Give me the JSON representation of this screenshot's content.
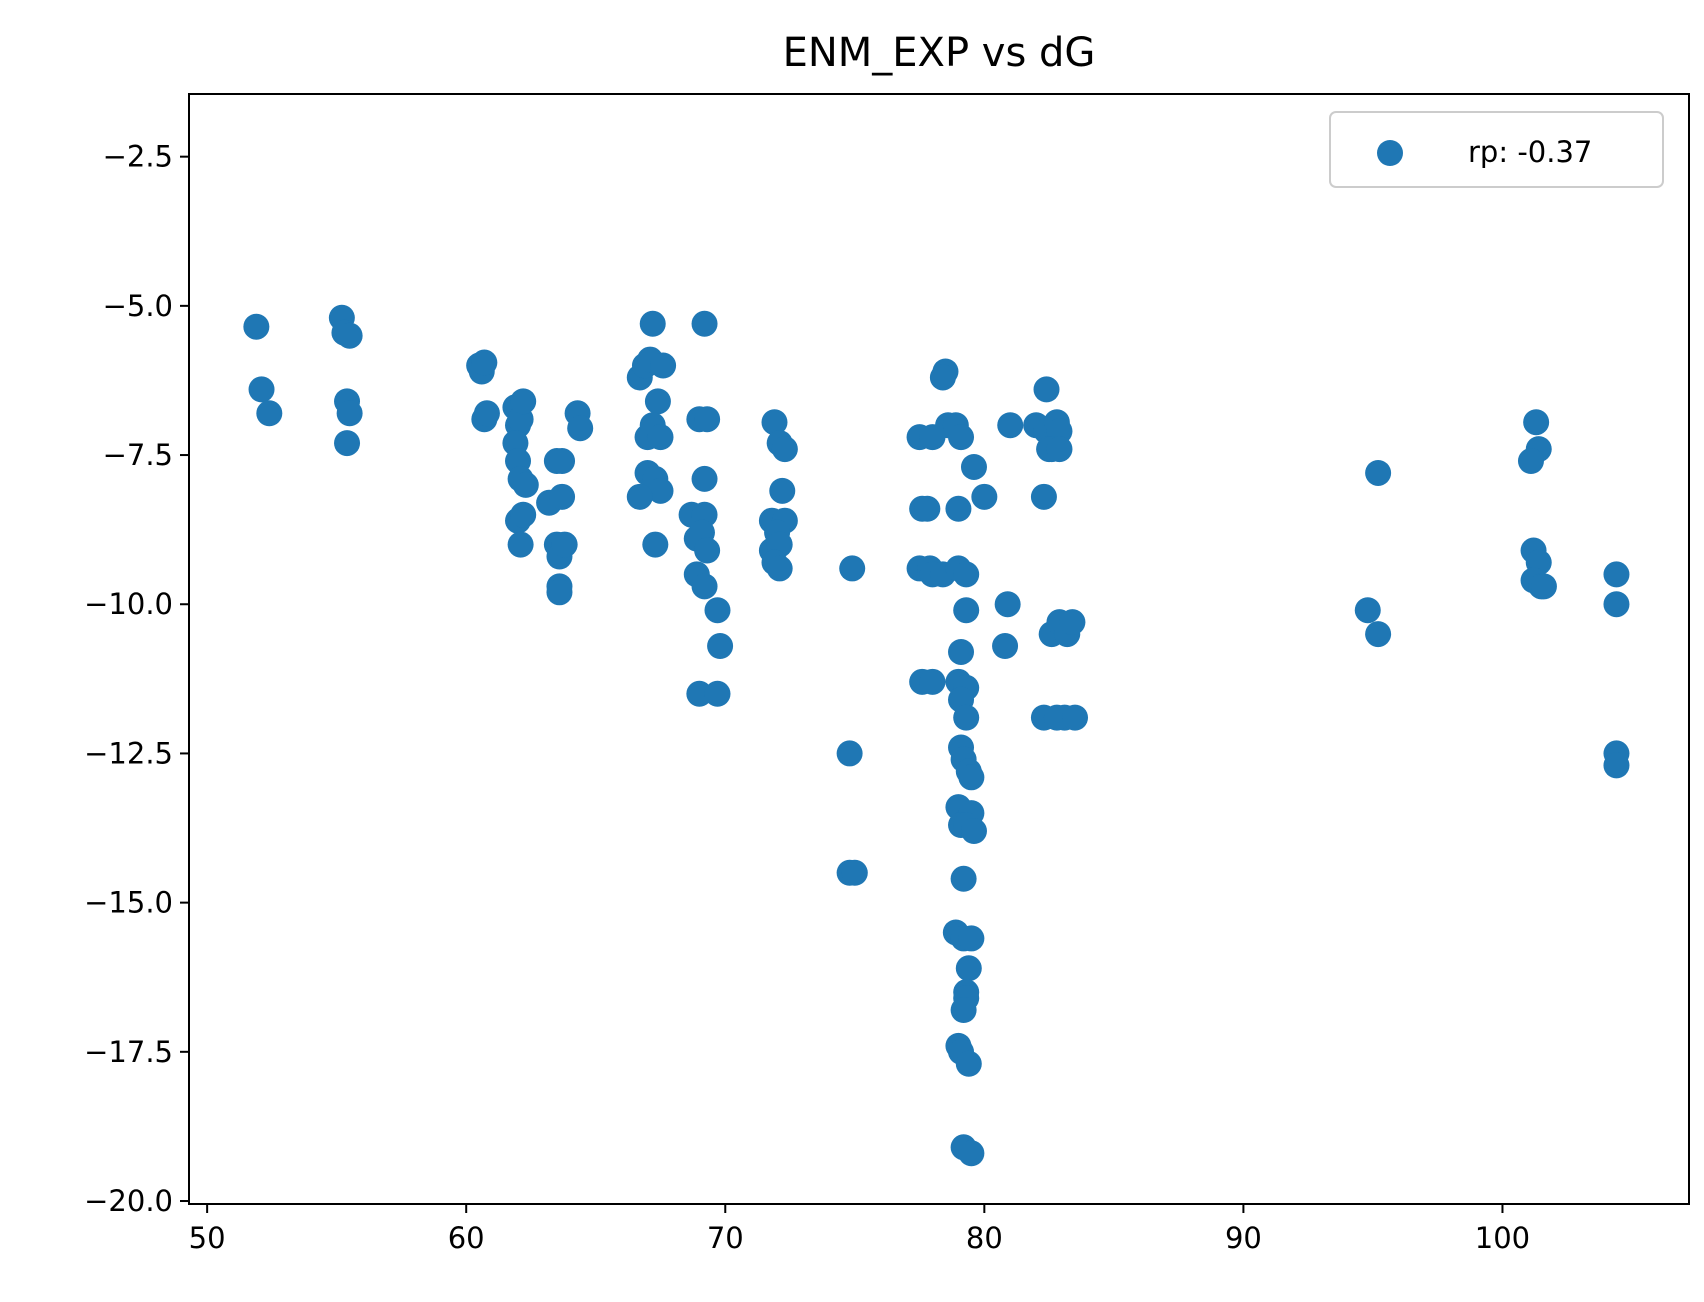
{
  "chart_data": {
    "type": "scatter",
    "title": "ENM_EXP vs dG",
    "xlabel": "",
    "ylabel": "",
    "xlim": [
      49.3,
      107.2
    ],
    "ylim": [
      -20.05,
      -1.45
    ],
    "xticks": [
      50,
      60,
      70,
      80,
      90,
      100
    ],
    "xtick_labels": [
      "50",
      "60",
      "70",
      "80",
      "90",
      "100"
    ],
    "yticks": [
      -2.5,
      -5.0,
      -7.5,
      -10.0,
      -12.5,
      -15.0,
      -17.5,
      -20.0
    ],
    "ytick_labels": [
      "−2.5",
      "−5.0",
      "−7.5",
      "−10.0",
      "−12.5",
      "−15.0",
      "−17.5",
      "−20.0"
    ],
    "grid": false,
    "legend": {
      "position": "top-right",
      "entries": [
        "rp: -0.37"
      ]
    },
    "colors": {
      "series": "#1f77b4"
    },
    "series": [
      {
        "name": "rp: -0.37",
        "x": [
          51.9,
          52.1,
          52.4,
          55.2,
          55.3,
          55.5,
          55.4,
          55.5,
          55.4,
          60.5,
          60.6,
          60.7,
          60.7,
          60.8,
          61.9,
          62.0,
          62.1,
          61.9,
          62.0,
          62.2,
          62.1,
          62.3,
          62.0,
          62.2,
          62.1,
          63.2,
          63.5,
          63.7,
          63.7,
          63.5,
          63.6,
          63.8,
          63.6,
          63.6,
          64.3,
          64.4,
          66.7,
          66.9,
          67.1,
          67.2,
          67.6,
          67.4,
          67.0,
          67.2,
          67.5,
          67.0,
          67.3,
          67.5,
          66.7,
          67.3,
          69.2,
          69.0,
          69.3,
          69.2,
          68.7,
          68.9,
          69.2,
          69.1,
          69.3,
          68.9,
          69.2,
          69.7,
          69.8,
          69.0,
          69.7,
          71.9,
          72.1,
          72.3,
          72.2,
          71.8,
          72.3,
          72.0,
          71.8,
          72.1,
          71.9,
          72.1,
          74.9,
          74.8,
          74.8,
          75.0,
          78.5,
          78.4,
          77.5,
          78.0,
          78.6,
          78.9,
          79.1,
          77.6,
          77.8,
          79.0,
          79.6,
          80.0,
          77.5,
          77.9,
          78.0,
          78.4,
          79.0,
          79.3,
          79.3,
          79.1,
          77.6,
          78.0,
          79.0,
          79.3,
          79.1,
          79.3,
          79.1,
          79.2,
          79.4,
          79.5,
          79.0,
          79.5,
          79.1,
          79.3,
          79.6,
          79.2,
          78.9,
          79.2,
          79.5,
          79.4,
          79.3,
          79.3,
          79.2,
          79.0,
          79.1,
          79.4,
          79.2,
          79.5,
          81.0,
          82.0,
          82.4,
          82.4,
          82.8,
          82.6,
          82.9,
          82.5,
          82.6,
          82.9,
          82.3,
          80.9,
          80.8,
          82.6,
          82.9,
          83.2,
          83.4,
          83.1,
          82.3,
          82.8,
          83.5,
          95.2,
          94.8,
          95.2,
          101.3,
          101.4,
          101.1,
          101.2,
          101.4,
          101.2,
          101.5,
          101.6,
          104.4,
          104.4,
          104.4,
          104.4
        ],
        "y": [
          -5.35,
          -6.4,
          -6.8,
          -5.2,
          -5.45,
          -5.5,
          -6.6,
          -6.8,
          -7.3,
          -6.0,
          -6.1,
          -5.95,
          -6.9,
          -6.8,
          -6.7,
          -7.0,
          -6.9,
          -7.3,
          -7.6,
          -6.6,
          -7.9,
          -8.0,
          -8.6,
          -8.5,
          -9.0,
          -8.3,
          -7.6,
          -7.6,
          -8.2,
          -9.0,
          -9.2,
          -9.0,
          -9.7,
          -9.8,
          -6.8,
          -7.05,
          -6.2,
          -6.0,
          -5.9,
          -5.3,
          -6.0,
          -6.6,
          -7.2,
          -7.0,
          -7.2,
          -7.8,
          -7.9,
          -8.1,
          -8.2,
          -9.0,
          -5.3,
          -6.9,
          -6.9,
          -7.9,
          -8.5,
          -8.9,
          -8.5,
          -8.8,
          -9.1,
          -9.5,
          -9.7,
          -10.1,
          -10.7,
          -11.5,
          -11.5,
          -6.95,
          -7.3,
          -7.4,
          -8.1,
          -8.6,
          -8.6,
          -8.8,
          -9.1,
          -9.0,
          -9.3,
          -9.4,
          -9.4,
          -12.5,
          -14.5,
          -14.5,
          -6.1,
          -6.2,
          -7.2,
          -7.2,
          -7.0,
          -7.0,
          -7.2,
          -8.4,
          -8.4,
          -8.4,
          -7.7,
          -8.2,
          -9.4,
          -9.4,
          -9.5,
          -9.5,
          -9.4,
          -9.5,
          -10.1,
          -10.8,
          -11.3,
          -11.3,
          -11.3,
          -11.4,
          -11.6,
          -11.9,
          -12.4,
          -12.6,
          -12.8,
          -12.9,
          -13.4,
          -13.5,
          -13.7,
          -13.7,
          -13.8,
          -14.6,
          -15.5,
          -15.6,
          -15.6,
          -16.1,
          -16.5,
          -16.6,
          -16.8,
          -17.4,
          -17.5,
          -17.7,
          -19.1,
          -19.2,
          -7.0,
          -7.0,
          -7.1,
          -6.4,
          -6.95,
          -7.3,
          -7.1,
          -7.4,
          -7.4,
          -7.4,
          -8.2,
          -10.0,
          -10.7,
          -10.5,
          -10.3,
          -10.5,
          -10.3,
          -11.9,
          -11.9,
          -11.9,
          -11.9,
          -7.8,
          -10.1,
          -10.5,
          -6.95,
          -7.4,
          -7.6,
          -9.1,
          -9.3,
          -9.6,
          -9.7,
          -9.7,
          -9.5,
          -10.0,
          -12.5,
          -12.7
        ]
      }
    ]
  }
}
